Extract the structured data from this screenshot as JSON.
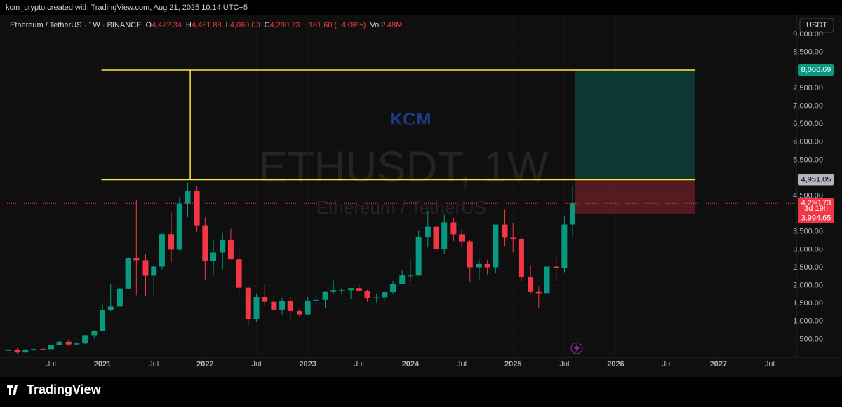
{
  "header": {
    "credit": "kcm_crypto created with TradingView.com, Aug 21, 2025 10:14 UTC+5",
    "symbol": "Ethereum / TetherUS · 1W · BINANCE",
    "legend": [
      {
        "key": "O",
        "value": "4,472.34"
      },
      {
        "key": "H",
        "value": "4,481.88"
      },
      {
        "key": "L",
        "value": "4,060.00"
      },
      {
        "key": "C",
        "value": "4,290.73"
      }
    ],
    "change": "−181.60 (−4.06%)",
    "vol_key": "Vol",
    "vol": "2.48M",
    "currency": "USDT",
    "brand": "TradingView"
  },
  "chart_data": {
    "type": "candlestick",
    "watermark": "ETHUSDT, 1W",
    "watermark_sub": "Ethereum / TetherUS",
    "annotation_text": "KCM",
    "up_color": "#089981",
    "down_color": "#f23645",
    "xlim": [
      2020.07,
      2027.76
    ],
    "ylim": [
      0,
      9530
    ],
    "xticks": [
      {
        "value": 2020.5,
        "label": "Jul"
      },
      2021,
      {
        "value": 2021.5,
        "label": "Jul"
      },
      2022,
      {
        "value": 2022.5,
        "label": "Jul"
      },
      2023,
      {
        "value": 2023.5,
        "label": "Jul"
      },
      2024,
      {
        "value": 2024.5,
        "label": "Jul"
      },
      2025,
      {
        "value": 2025.5,
        "label": "Jul"
      },
      2026,
      {
        "value": 2026.5,
        "label": "Jul"
      },
      2027,
      {
        "value": 2027.5,
        "label": "Jul"
      }
    ],
    "yticks": [
      {
        "value": 500,
        "label": "500.00"
      },
      {
        "value": 1000,
        "label": "1,000.00"
      },
      {
        "value": 1500,
        "label": "1,500.00"
      },
      {
        "value": 2000,
        "label": "2,000.00"
      },
      {
        "value": 2500,
        "label": "2,500.00"
      },
      {
        "value": 3000,
        "label": "3,000.00"
      },
      {
        "value": 3500,
        "label": "3,500.00"
      },
      {
        "value": 4500,
        "label": "4,500.00"
      },
      {
        "value": 5500,
        "label": "5,500.00"
      },
      {
        "value": 6000,
        "label": "6,000.00"
      },
      {
        "value": 6500,
        "label": "6,500.00"
      },
      {
        "value": 7000,
        "label": "7,000.00"
      },
      {
        "value": 7500,
        "label": "7,500.00"
      },
      {
        "value": 8500,
        "label": "8,500.00"
      },
      {
        "value": 9000,
        "label": "9,000.00"
      }
    ],
    "series": [
      {
        "name": "ETHUSDT",
        "x": [
          2020.08,
          2020.17,
          2020.25,
          2020.33,
          2020.42,
          2020.5,
          2020.58,
          2020.67,
          2020.75,
          2020.83,
          2020.92,
          2021.0,
          2021.08,
          2021.17,
          2021.25,
          2021.33,
          2021.42,
          2021.5,
          2021.58,
          2021.67,
          2021.75,
          2021.83,
          2021.92,
          2022.0,
          2022.08,
          2022.17,
          2022.25,
          2022.33,
          2022.42,
          2022.5,
          2022.58,
          2022.67,
          2022.75,
          2022.83,
          2022.92,
          2023.0,
          2023.08,
          2023.17,
          2023.25,
          2023.33,
          2023.42,
          2023.5,
          2023.58,
          2023.67,
          2023.75,
          2023.83,
          2023.92,
          2024.0,
          2024.08,
          2024.17,
          2024.25,
          2024.33,
          2024.42,
          2024.5,
          2024.58,
          2024.67,
          2024.75,
          2024.83,
          2024.92,
          2025.0,
          2025.08,
          2025.17,
          2025.25,
          2025.33,
          2025.42,
          2025.5,
          2025.58
        ],
        "open": [
          180,
          218,
          133,
          206,
          231,
          226,
          345,
          434,
          359,
          386,
          616,
          737,
          1314,
          1418,
          1918,
          2773,
          2707,
          2275,
          2530,
          3433,
          3000,
          4288,
          4630,
          3680,
          2690,
          2920,
          3280,
          2730,
          1940,
          1070,
          1680,
          1550,
          1330,
          1570,
          1290,
          1200,
          1585,
          1605,
          1820,
          1870,
          1870,
          1930,
          1855,
          1645,
          1670,
          1815,
          2050,
          2280,
          2280,
          3340,
          3640,
          3010,
          3760,
          3430,
          3230,
          2510,
          2600,
          2510,
          3700,
          3330,
          3300,
          2240,
          1820,
          1790,
          2530,
          2480,
          3700
        ],
        "high": [
          288,
          253,
          227,
          247,
          253,
          347,
          445,
          489,
          420,
          622,
          755,
          1475,
          2040,
          1942,
          2797,
          4372,
          2890,
          2550,
          3470,
          4027,
          4460,
          4868,
          4780,
          3900,
          3280,
          3480,
          3580,
          2950,
          1970,
          1780,
          2030,
          1790,
          1660,
          1680,
          1350,
          1680,
          1740,
          1840,
          2140,
          1930,
          1930,
          2030,
          1880,
          1760,
          1870,
          2130,
          2440,
          2720,
          3520,
          4090,
          3730,
          3980,
          3890,
          3560,
          3280,
          2730,
          2720,
          3680,
          4110,
          3740,
          3340,
          2550,
          1960,
          2790,
          2880,
          3940,
          4790
        ],
        "low": [
          180,
          86,
          130,
          176,
          216,
          222,
          345,
          309,
          334,
          372,
          539,
          714,
          1287,
          1418,
          1918,
          1730,
          1700,
          1718,
          2450,
          2651,
          2970,
          3900,
          3500,
          2160,
          2300,
          2450,
          2800,
          1700,
          880,
          1000,
          1420,
          1220,
          1190,
          1070,
          1150,
          1190,
          1460,
          1370,
          1780,
          1760,
          1620,
          1830,
          1550,
          1530,
          1520,
          1780,
          2040,
          2100,
          2270,
          3060,
          2810,
          2870,
          3240,
          3080,
          2110,
          2150,
          2310,
          2350,
          3100,
          2920,
          2120,
          1750,
          1385,
          1750,
          2110,
          2370,
          3350
        ],
        "close": [
          218,
          133,
          206,
          231,
          226,
          345,
          434,
          359,
          386,
          616,
          737,
          1314,
          1418,
          1918,
          2773,
          2707,
          2275,
          2530,
          3433,
          3000,
          4288,
          4630,
          3680,
          2690,
          2920,
          3280,
          2730,
          1940,
          1070,
          1680,
          1550,
          1330,
          1570,
          1290,
          1200,
          1585,
          1605,
          1820,
          1870,
          1870,
          1930,
          1855,
          1645,
          1670,
          1815,
          2050,
          2280,
          2280,
          3340,
          3640,
          3010,
          3760,
          3430,
          3230,
          2510,
          2600,
          2510,
          3700,
          3330,
          3300,
          2240,
          1820,
          1790,
          2530,
          2480,
          3700,
          4290.73
        ]
      }
    ],
    "levels": {
      "range_x": [
        2020.99,
        2026.77
      ],
      "box_x": [
        2025.607,
        2026.77
      ],
      "measure_x": 2021.855,
      "target": {
        "value": 8006.69,
        "label": "8,006.69"
      },
      "entry": {
        "value": 4951.05,
        "label": "4,951.05"
      },
      "last": {
        "value": 4290.73,
        "label": "4,290.73"
      },
      "countdown": "3d 19h",
      "stop": {
        "value": 3994.65,
        "label": "3,994.65"
      }
    }
  }
}
